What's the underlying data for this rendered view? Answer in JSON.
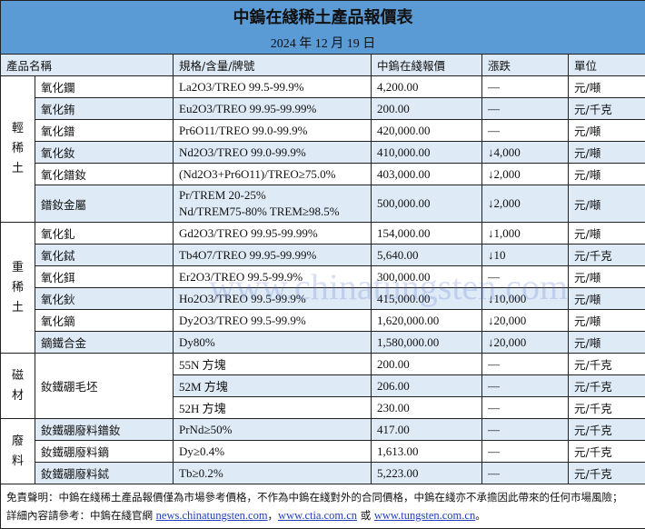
{
  "title": "中鎢在綫稀土產品報價表",
  "date": "2024 年 12 月 19 日",
  "headers": [
    "產品名稱",
    "規格/含量/牌號",
    "中鎢在綫報價",
    "漲跌",
    "單位"
  ],
  "groups": [
    {
      "category": "輕稀土",
      "rows": [
        {
          "name": "氧化鑭",
          "spec": "La2O3/TREO 99.5-99.9%",
          "price": "4,200.00",
          "change": "—",
          "unit": "元/噸"
        },
        {
          "name": "氧化銪",
          "spec": "Eu2O3/TREO 99.95-99.99%",
          "price": "200.00",
          "change": "—",
          "unit": "元/千克"
        },
        {
          "name": "氧化鐠",
          "spec": "Pr6O11/TREO 99.0-99.9%",
          "price": "420,000.00",
          "change": "—",
          "unit": "元/噸"
        },
        {
          "name": "氧化釹",
          "spec": "Nd2O3/TREO 99.0-99.9%",
          "price": "410,000.00",
          "change": "↓4,000",
          "unit": "元/噸"
        },
        {
          "name": "氧化鐠釹",
          "spec": "(Nd2O3+Pr6O11)/TREO≥75.0%",
          "price": "403,000.00",
          "change": "↓2,000",
          "unit": "元/噸"
        },
        {
          "name": "鐠釹金屬",
          "spec": "Pr/TREM 20-25%",
          "spec2": "Nd/TREM75-80% TREM≥98.5%",
          "price": "500,000.00",
          "change": "↓2,000",
          "unit": "元/噸"
        }
      ]
    },
    {
      "category": "重稀土",
      "rows": [
        {
          "name": "氧化釓",
          "spec": "Gd2O3/TREO 99.95-99.99%",
          "price": "154,000.00",
          "change": "↓1,000",
          "unit": "元/噸"
        },
        {
          "name": "氧化鋱",
          "spec": "Tb4O7/TREO 99.95-99.99%",
          "price": "5,640.00",
          "change": "↓10",
          "unit": "元/千克"
        },
        {
          "name": "氧化鉺",
          "spec": "Er2O3/TREO 99.5-99.9%",
          "price": "300,000.00",
          "change": "—",
          "unit": "元/噸"
        },
        {
          "name": "氧化鈥",
          "spec": "Ho2O3/TREO 99.5-99.9%",
          "price": "415,000.00",
          "change": "↓10,000",
          "unit": "元/噸"
        },
        {
          "name": "氧化鏑",
          "spec": "Dy2O3/TREO 99.5-99.9%",
          "price": "1,620,000.00",
          "change": "↓20,000",
          "unit": "元/噸"
        },
        {
          "name": "鏑鐵合金",
          "spec": "Dy80%",
          "price": "1,580,000.00",
          "change": "↓20,000",
          "unit": "元/噸"
        }
      ]
    },
    {
      "category": "磁材",
      "name": "釹鐵硼毛坯",
      "rows": [
        {
          "spec": "55N 方塊",
          "price": "200.00",
          "change": "—",
          "unit": "元/千克"
        },
        {
          "spec": "52M 方塊",
          "price": "206.00",
          "change": "—",
          "unit": "元/千克"
        },
        {
          "spec": "52H 方塊",
          "price": "230.00",
          "change": "—",
          "unit": "元/千克"
        }
      ]
    },
    {
      "category": "廢料",
      "rows": [
        {
          "name": "釹鐵硼廢料鐠釹",
          "spec": "PrNd≥50%",
          "price": "417.00",
          "change": "—",
          "unit": "元/千克"
        },
        {
          "name": "釹鐵硼廢料鏑",
          "spec": "Dy≥0.4%",
          "price": "1,613.00",
          "change": "—",
          "unit": "元/千克"
        },
        {
          "name": "釹鐵硼廢料鋱",
          "spec": "Tb≥0.2%",
          "price": "5,223.00",
          "change": "—",
          "unit": "元/千克"
        }
      ]
    }
  ],
  "footer": {
    "disclaimer": "免責聲明：中鎢在綫稀土產品報價僅為市場參考價格，不作為中鎢在綫對外的合同價格，中鎢在綫亦不承擔因此帶來的任何市場風險；",
    "more_prefix": "詳細內容請參考：中鎢在綫官網 ",
    "link1": "news.chinatungsten.com",
    "sep1": "，",
    "link2": "www.ctia.com.cn",
    "sep2": " 或 ",
    "link3": "www.tungsten.com.cn",
    "end": "。"
  },
  "watermark": "www.chinatungsten.com"
}
